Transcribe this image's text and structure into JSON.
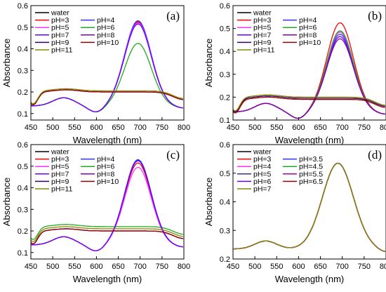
{
  "chart_data": [
    {
      "type": "line",
      "panel_label": "(a)",
      "xlabel": "Wavelength (nm)",
      "ylabel": "Absorbance",
      "xlim": [
        450,
        800
      ],
      "ylim": [
        0.07,
        0.6
      ],
      "xticks": [
        450,
        500,
        550,
        600,
        650,
        700,
        750,
        800
      ],
      "yticks": [
        0.1,
        0.2,
        0.3,
        0.4,
        0.5,
        0.6
      ],
      "legend": "top-left, 2 columns",
      "series": [
        {
          "name": "water",
          "color": "#000000",
          "profile": "peak",
          "peak": 0.54
        },
        {
          "name": "pH=3",
          "color": "#ff0000",
          "profile": "peak",
          "peak": 0.54
        },
        {
          "name": "pH=4",
          "color": "#3333ff",
          "profile": "peak",
          "peak": 0.545
        },
        {
          "name": "pH=5",
          "color": "#ff33ff",
          "profile": "peak",
          "peak": 0.535
        },
        {
          "name": "pH=6",
          "color": "#22aa22",
          "profile": "peak",
          "peak": 0.44
        },
        {
          "name": "pH=7",
          "color": "#6a00ff",
          "profile": "peak",
          "peak": 0.53
        },
        {
          "name": "pH=8",
          "color": "#8800aa",
          "profile": "flat",
          "base": 0.2
        },
        {
          "name": "pH=9",
          "color": "#330066",
          "profile": "flat",
          "base": 0.2
        },
        {
          "name": "pH=10",
          "color": "#990000",
          "profile": "flat",
          "base": 0.2
        },
        {
          "name": "pH=11",
          "color": "#888800",
          "profile": "flat",
          "base": 0.205
        }
      ]
    },
    {
      "type": "line",
      "panel_label": "(b)",
      "xlabel": "Wavelength (nm)",
      "ylabel": "Absorbance",
      "xlim": [
        450,
        800
      ],
      "ylim": [
        0.1,
        0.6
      ],
      "xticks": [
        450,
        500,
        550,
        600,
        650,
        700,
        750,
        800
      ],
      "yticks": [
        0.1,
        0.2,
        0.3,
        0.4,
        0.5,
        0.6
      ],
      "legend": "top-left, 2 columns",
      "series": [
        {
          "name": "water",
          "color": "#000000",
          "profile": "peak",
          "peak": 0.5
        },
        {
          "name": "pH=3",
          "color": "#ff0000",
          "profile": "peak",
          "peak": 0.54
        },
        {
          "name": "pH=4",
          "color": "#3333ff",
          "profile": "peak",
          "peak": 0.49
        },
        {
          "name": "pH=5",
          "color": "#ff33ff",
          "profile": "peak",
          "peak": 0.5
        },
        {
          "name": "pH=6",
          "color": "#22aa22",
          "profile": "peak",
          "peak": 0.505
        },
        {
          "name": "pH=7",
          "color": "#6a00ff",
          "profile": "peak",
          "peak": 0.48
        },
        {
          "name": "pH=8",
          "color": "#8800aa",
          "profile": "peak",
          "peak": 0.47
        },
        {
          "name": "pH=9",
          "color": "#330066",
          "profile": "flat",
          "base": 0.195
        },
        {
          "name": "pH=10",
          "color": "#990000",
          "profile": "flat",
          "base": 0.19
        },
        {
          "name": "pH=11",
          "color": "#888800",
          "profile": "flat",
          "base": 0.2
        }
      ]
    },
    {
      "type": "line",
      "panel_label": "(c)",
      "xlabel": "Wavelength (nm)",
      "ylabel": "Absorbance",
      "xlim": [
        450,
        800
      ],
      "ylim": [
        0.07,
        0.6
      ],
      "xticks": [
        450,
        500,
        550,
        600,
        650,
        700,
        750,
        800
      ],
      "yticks": [
        0.1,
        0.2,
        0.3,
        0.4,
        0.5,
        0.6
      ],
      "legend": "top-left, 2 columns",
      "series": [
        {
          "name": "water",
          "color": "#000000",
          "profile": "peak",
          "peak": 0.545
        },
        {
          "name": "pH=3",
          "color": "#ff0000",
          "profile": "peak",
          "peak": 0.53
        },
        {
          "name": "pH=4",
          "color": "#3333ff",
          "profile": "peak",
          "peak": 0.545
        },
        {
          "name": "pH=5",
          "color": "#ff33ff",
          "profile": "peak",
          "peak": 0.51
        },
        {
          "name": "pH=6",
          "color": "#22aa22",
          "profile": "flat",
          "base": 0.22
        },
        {
          "name": "pH=7",
          "color": "#6a00ff",
          "profile": "peak",
          "peak": 0.54
        },
        {
          "name": "pH=8",
          "color": "#8800aa",
          "profile": "flat",
          "base": 0.2
        },
        {
          "name": "pH=9",
          "color": "#330066",
          "profile": "flat",
          "base": 0.2
        },
        {
          "name": "pH=10",
          "color": "#990000",
          "profile": "flat",
          "base": 0.2
        },
        {
          "name": "pH=11",
          "color": "#888800",
          "profile": "flat",
          "base": 0.21
        }
      ]
    },
    {
      "type": "line",
      "panel_label": "(d)",
      "xlabel": "Wavelength (nm)",
      "ylabel": "Absorbance",
      "xlim": [
        450,
        800
      ],
      "ylim": [
        0.2,
        0.6
      ],
      "xticks": [
        450,
        500,
        550,
        600,
        650,
        700,
        750,
        800
      ],
      "yticks": [
        0.2,
        0.3,
        0.4,
        0.5,
        0.6
      ],
      "legend": "top-left, 2 columns",
      "series": [
        {
          "name": "water",
          "color": "#000000",
          "profile": "peakD",
          "peak": 0.54
        },
        {
          "name": "pH=3",
          "color": "#ff0000",
          "profile": "peakD",
          "peak": 0.54
        },
        {
          "name": "pH=3.5",
          "color": "#3333ff",
          "profile": "peakD",
          "peak": 0.54
        },
        {
          "name": "pH=4",
          "color": "#ff33ff",
          "profile": "peakD",
          "peak": 0.54
        },
        {
          "name": "pH=4.5",
          "color": "#22aa22",
          "profile": "peakD",
          "peak": 0.54
        },
        {
          "name": "pH=5",
          "color": "#333399",
          "profile": "peakD",
          "peak": 0.54
        },
        {
          "name": "pH=5.5",
          "color": "#aa00aa",
          "profile": "peakD",
          "peak": 0.54
        },
        {
          "name": "pH=6",
          "color": "#6a00ff",
          "profile": "peakD",
          "peak": 0.54
        },
        {
          "name": "pH=6.5",
          "color": "#990000",
          "profile": "peakD",
          "peak": 0.54
        },
        {
          "name": "pH=7",
          "color": "#888800",
          "profile": "peakD",
          "peak": 0.54
        }
      ]
    }
  ]
}
